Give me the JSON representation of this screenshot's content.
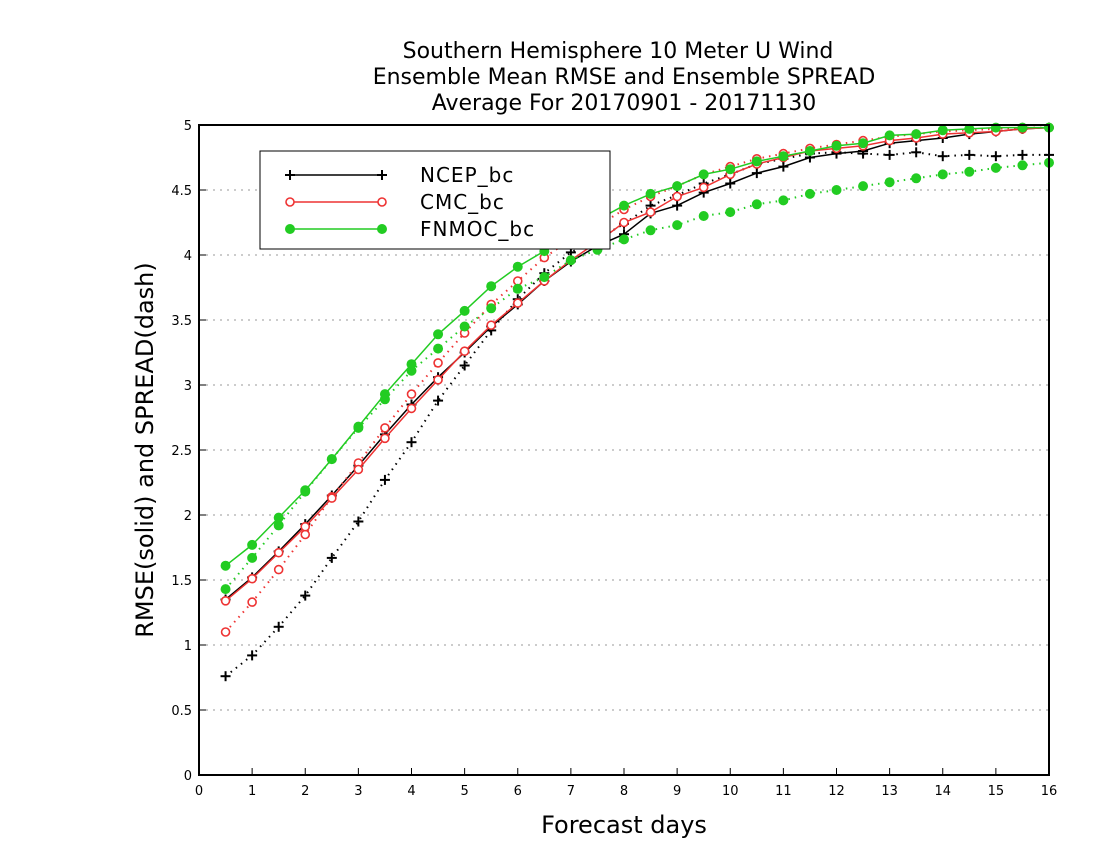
{
  "chart_data": {
    "type": "line",
    "title_lines": [
      "Southern Hemisphere 10 Meter U Wind",
      "Ensemble Mean RMSE and Ensemble SPREAD",
      "Average For 20170901 - 20171130"
    ],
    "xlabel": "Forecast days",
    "ylabel": "RMSE(solid) and SPREAD(dash)",
    "xlim": [
      0,
      16
    ],
    "ylim": [
      0,
      5
    ],
    "x_ticks": [
      "0",
      "1",
      "2",
      "3",
      "4",
      "5",
      "6",
      "7",
      "8",
      "9",
      "10",
      "11",
      "12",
      "13",
      "14",
      "15",
      "16"
    ],
    "y_ticks": [
      "0",
      "0.5",
      "1",
      "1.5",
      "2",
      "2.5",
      "3",
      "3.5",
      "4",
      "4.5",
      "5"
    ],
    "grid": "horizontal dotted",
    "legend_position": "top-left",
    "x": [
      0.5,
      1,
      1.5,
      2,
      2.5,
      3,
      3.5,
      4,
      4.5,
      5,
      5.5,
      6,
      6.5,
      7,
      7.5,
      8,
      8.5,
      9,
      9.5,
      10,
      10.5,
      11,
      11.5,
      12,
      12.5,
      13,
      13.5,
      14,
      14.5,
      15,
      15.5,
      16
    ],
    "series": [
      {
        "name": "NCEP_bc",
        "color": "#000000",
        "marker": "plus",
        "rmse": [
          1.35,
          1.52,
          1.72,
          1.93,
          2.15,
          2.38,
          2.62,
          2.85,
          3.06,
          3.25,
          3.45,
          3.62,
          3.8,
          3.95,
          4.07,
          4.16,
          4.32,
          4.38,
          4.48,
          4.55,
          4.63,
          4.68,
          4.75,
          4.78,
          4.8,
          4.86,
          4.88,
          4.9,
          4.93,
          4.95,
          4.97,
          4.98
        ],
        "spread": [
          0.76,
          0.92,
          1.14,
          1.38,
          1.67,
          1.95,
          2.27,
          2.56,
          2.88,
          3.15,
          3.42,
          3.66,
          3.86,
          4.02,
          4.12,
          4.24,
          4.38,
          4.46,
          4.55,
          4.62,
          4.7,
          4.74,
          4.78,
          4.79,
          4.78,
          4.77,
          4.79,
          4.76,
          4.77,
          4.76,
          4.77,
          4.77
        ]
      },
      {
        "name": "CMC_bc",
        "color": "#ee3333",
        "marker": "open-circle",
        "rmse": [
          1.34,
          1.51,
          1.71,
          1.91,
          2.13,
          2.35,
          2.59,
          2.82,
          3.04,
          3.26,
          3.46,
          3.63,
          3.8,
          3.96,
          4.1,
          4.25,
          4.33,
          4.45,
          4.52,
          4.62,
          4.7,
          4.75,
          4.8,
          4.82,
          4.84,
          4.88,
          4.9,
          4.93,
          4.94,
          4.95,
          4.97,
          4.98
        ],
        "spread": [
          1.1,
          1.33,
          1.58,
          1.85,
          2.14,
          2.4,
          2.67,
          2.93,
          3.17,
          3.4,
          3.62,
          3.8,
          3.98,
          4.12,
          4.22,
          4.35,
          4.45,
          4.53,
          4.62,
          4.68,
          4.74,
          4.78,
          4.82,
          4.85,
          4.88,
          4.91,
          4.93,
          4.95,
          4.96,
          4.97,
          4.98,
          4.98
        ]
      },
      {
        "name": "FNMOC_bc",
        "color": "#22cc22",
        "marker": "filled-circle",
        "rmse": [
          1.61,
          1.77,
          1.98,
          2.19,
          2.43,
          2.68,
          2.93,
          3.16,
          3.39,
          3.57,
          3.76,
          3.91,
          4.03,
          4.15,
          4.27,
          4.38,
          4.47,
          4.53,
          4.62,
          4.66,
          4.72,
          4.76,
          4.8,
          4.84,
          4.86,
          4.92,
          4.93,
          4.96,
          4.97,
          4.98,
          4.98,
          4.98
        ],
        "spread": [
          1.43,
          1.67,
          1.92,
          2.18,
          2.43,
          2.67,
          2.89,
          3.11,
          3.28,
          3.45,
          3.59,
          3.74,
          3.83,
          3.96,
          4.04,
          4.12,
          4.19,
          4.23,
          4.3,
          4.33,
          4.39,
          4.42,
          4.47,
          4.5,
          4.53,
          4.56,
          4.59,
          4.62,
          4.64,
          4.67,
          4.69,
          4.71
        ]
      }
    ]
  }
}
